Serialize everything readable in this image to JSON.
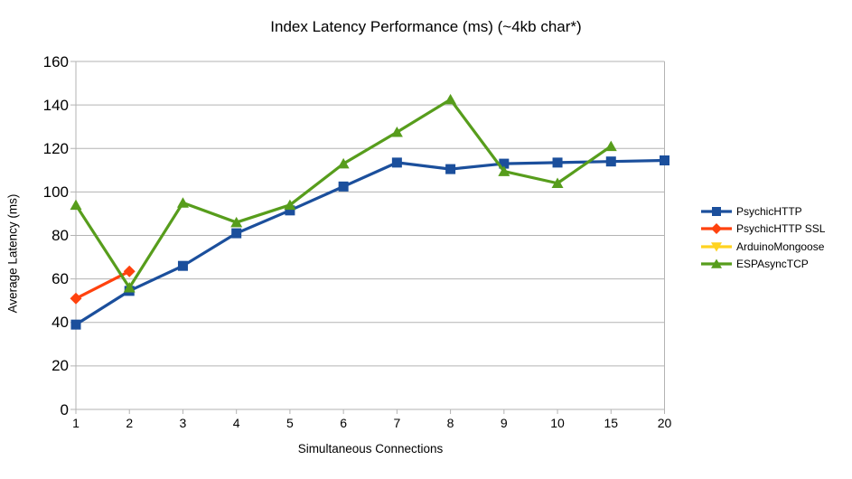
{
  "chart_data": {
    "type": "line",
    "title": "Index Latency Performance (ms) (~4kb char*)",
    "xlabel": "Simultaneous Connections",
    "ylabel": "Average Latency (ms)",
    "categories": [
      "1",
      "2",
      "3",
      "4",
      "5",
      "6",
      "7",
      "8",
      "9",
      "10",
      "15",
      "20"
    ],
    "ylim": [
      0,
      160
    ],
    "ytick_step": 20,
    "grid": true,
    "legend_position": "right",
    "axis_color": "#b3b3b3",
    "text_color": "#000000",
    "series": [
      {
        "name": "PsychicHTTP",
        "color": "#1B4F9C",
        "marker": "square",
        "values": [
          39,
          54.5,
          66,
          81,
          91.5,
          102.5,
          113.5,
          110.5,
          113,
          113.5,
          114,
          114.5
        ]
      },
      {
        "name": "PsychicHTTP SSL",
        "color": "#FF420E",
        "marker": "diamond",
        "values": [
          51,
          63.5,
          null,
          null,
          null,
          null,
          null,
          null,
          null,
          null,
          null,
          null
        ]
      },
      {
        "name": "ArduinoMongoose",
        "color": "#FFD320",
        "marker": "triangle-down",
        "values": [
          null,
          null,
          null,
          null,
          null,
          null,
          null,
          null,
          null,
          null,
          null,
          null
        ]
      },
      {
        "name": "ESPAsyncTCP",
        "color": "#579D1C",
        "marker": "triangle-up",
        "values": [
          94,
          56,
          95,
          86,
          94,
          113,
          127.5,
          142.5,
          109.5,
          104,
          121,
          null
        ]
      }
    ]
  }
}
